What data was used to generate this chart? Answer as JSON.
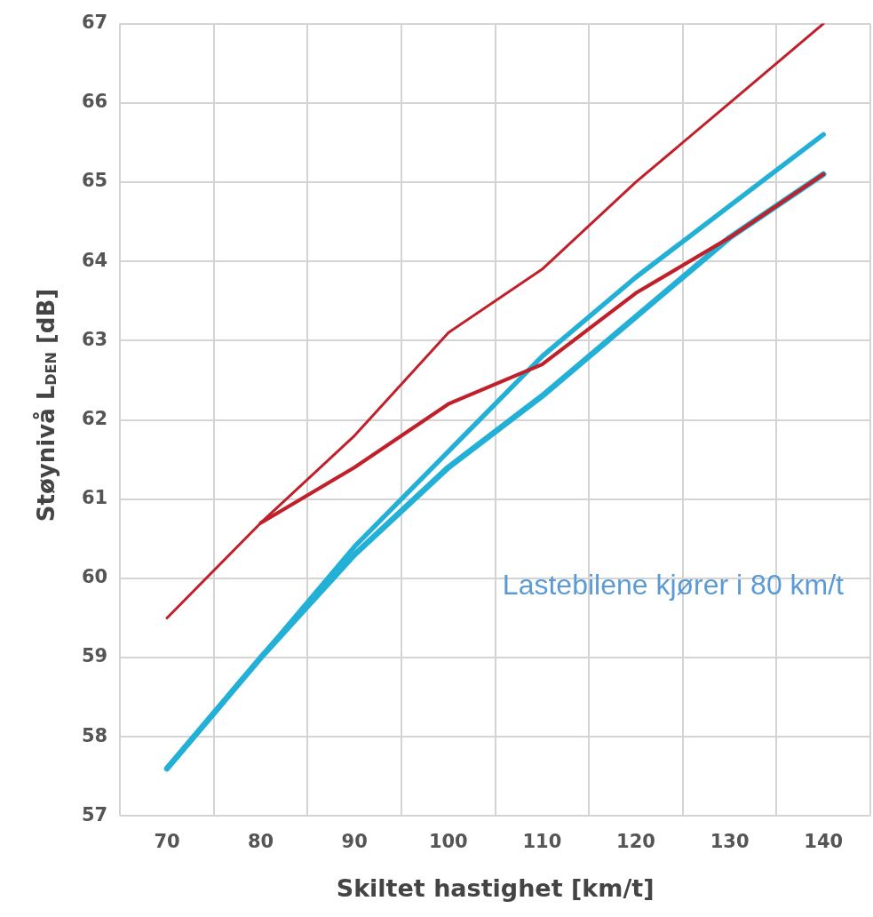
{
  "chart_data": {
    "type": "line",
    "xlabel": "Skiltet hastighet [km/t]",
    "ylabel": "Støynivå L$_{DEN}$ [dB]",
    "categories": [
      "70",
      "80",
      "90",
      "100",
      "110",
      "120",
      "130",
      "140"
    ],
    "series": [
      {
        "color": "#c0202a",
        "values": [
          59.5,
          60.7,
          61.8,
          63.1,
          63.9,
          65.0,
          66.0,
          67.0
        ]
      },
      {
        "color": "#c0202a",
        "values": [
          null,
          60.7,
          61.4,
          62.2,
          62.7,
          63.6,
          64.3,
          65.1
        ]
      },
      {
        "color": "#22b0d6",
        "values": [
          57.6,
          59.0,
          60.4,
          61.6,
          62.8,
          63.8,
          64.7,
          65.6
        ]
      },
      {
        "color": "#22b0d6",
        "values": [
          57.6,
          59.0,
          60.3,
          61.4,
          62.3,
          63.3,
          64.3,
          65.1
        ]
      }
    ],
    "ylim": [
      57,
      67
    ],
    "yticks": [
      57,
      58,
      59,
      60,
      61,
      62,
      63,
      64,
      65,
      66,
      67
    ],
    "grid": true,
    "legend": false,
    "marker": "none",
    "line_style": "solid",
    "annotations": [
      "Lastebilene kjører i 80 km/t"
    ]
  }
}
